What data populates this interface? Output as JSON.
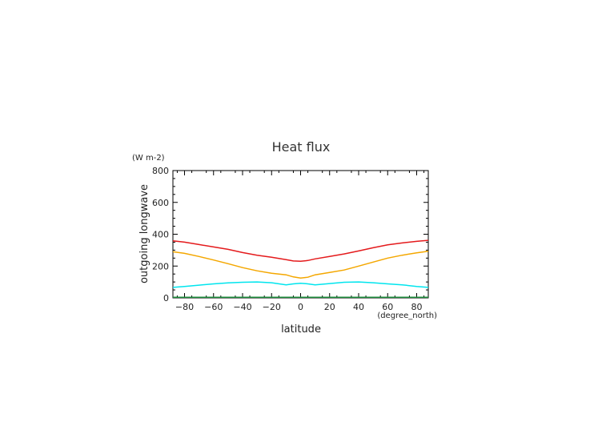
{
  "chart_data": {
    "type": "line",
    "title": "Heat flux",
    "xlabel": "latitude",
    "xunits": "(degree_north)",
    "ylabel": "outgoing longwave",
    "yunits": "(W m-2)",
    "xlim": [
      -88,
      88
    ],
    "ylim": [
      0,
      800
    ],
    "xticks": [
      -80,
      -60,
      -40,
      -20,
      0,
      20,
      40,
      60,
      80
    ],
    "xtick_labels": [
      "−80",
      "−60",
      "−40",
      "−20",
      "0",
      "20",
      "40",
      "60",
      "80"
    ],
    "yticks": [
      0,
      200,
      400,
      600,
      800
    ],
    "ytick_labels": [
      "0",
      "200",
      "400",
      "600",
      "800"
    ],
    "grid": false,
    "x": [
      -88,
      -80,
      -70,
      -60,
      -50,
      -40,
      -30,
      -20,
      -10,
      -5,
      0,
      5,
      10,
      20,
      30,
      40,
      50,
      60,
      70,
      80,
      88
    ],
    "series": [
      {
        "color": "#e41a1c",
        "values": [
          358,
          350,
          335,
          320,
          305,
          285,
          268,
          255,
          240,
          232,
          230,
          235,
          245,
          260,
          276,
          295,
          315,
          333,
          345,
          355,
          362
        ]
      },
      {
        "color": "#f4a700",
        "values": [
          290,
          280,
          260,
          238,
          215,
          190,
          170,
          155,
          145,
          132,
          125,
          130,
          145,
          160,
          175,
          200,
          225,
          250,
          268,
          283,
          293
        ]
      },
      {
        "color": "#00e5ee",
        "values": [
          66,
          72,
          80,
          88,
          94,
          98,
          100,
          95,
          82,
          88,
          92,
          88,
          82,
          90,
          98,
          100,
          95,
          88,
          82,
          72,
          66
        ]
      },
      {
        "color": "#1b8a3a",
        "values": [
          4,
          4,
          4,
          4,
          4,
          4,
          4,
          4,
          4,
          4,
          4,
          4,
          4,
          4,
          4,
          4,
          4,
          4,
          4,
          4,
          4
        ]
      }
    ]
  }
}
